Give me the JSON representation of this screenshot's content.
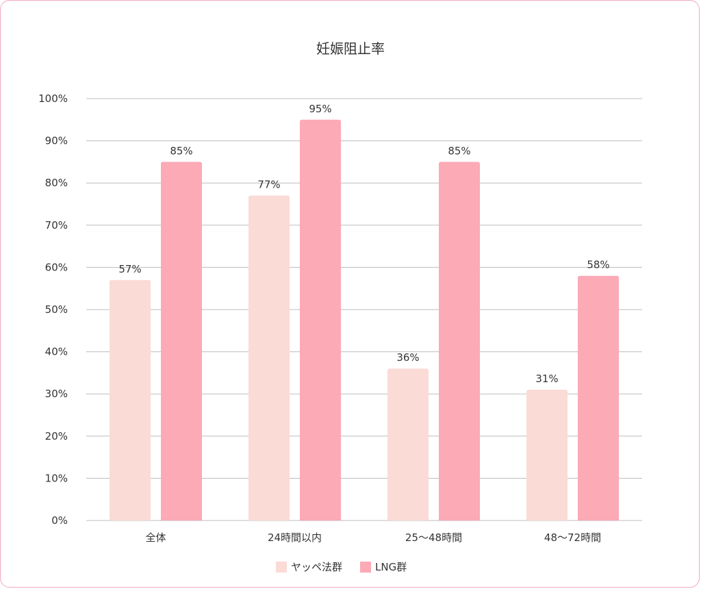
{
  "chart_data": {
    "type": "bar",
    "title": "妊娠阻止率",
    "categories": [
      "全体",
      "24時間以内",
      "25～48時間",
      "48～72時間"
    ],
    "series": [
      {
        "name": "ヤッペ法群",
        "values": [
          57,
          77,
          36,
          31
        ],
        "color": "#fadbd6"
      },
      {
        "name": "LNG群",
        "values": [
          85,
          95,
          85,
          58
        ],
        "color": "#fbaab6"
      }
    ],
    "ylim": [
      0,
      100
    ],
    "yticks": [
      0,
      10,
      20,
      30,
      40,
      50,
      60,
      70,
      80,
      90,
      100
    ],
    "tick_suffix": "%",
    "data_label_suffix": "%",
    "grid": true,
    "legend_position": "bottom-center",
    "xlabel": "",
    "ylabel": ""
  }
}
